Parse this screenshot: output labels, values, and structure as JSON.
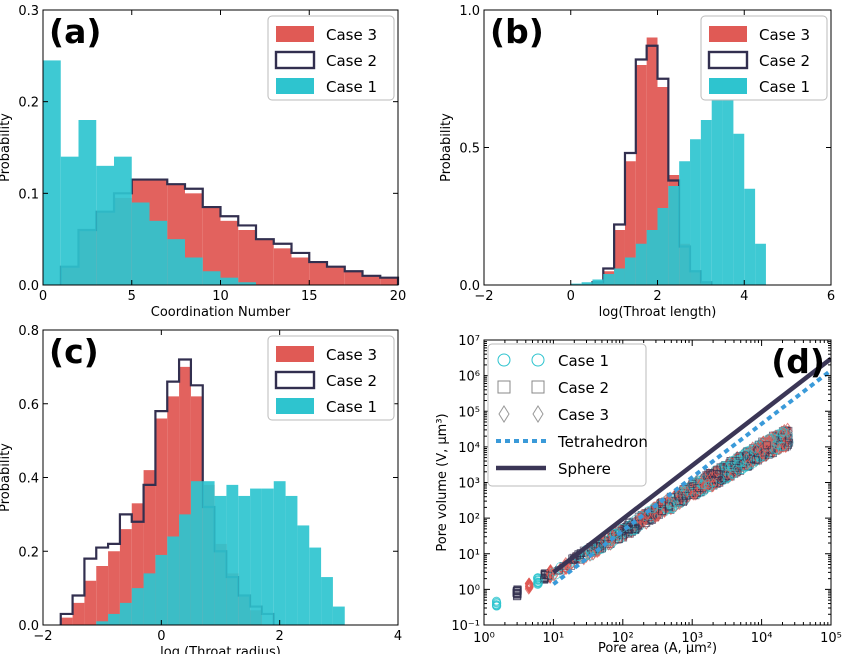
{
  "colors": {
    "case1": "#2ec4cf",
    "case2": "#322f4f",
    "case3": "#e05a55",
    "tetra": "#3a9ad9",
    "sphere": "#3b3656"
  },
  "chart_data": [
    {
      "type": "bar",
      "panel_label": "(a)",
      "xlabel": "Coordination Number",
      "ylabel": "Probability",
      "xlim": [
        0,
        20
      ],
      "ylim": [
        0,
        0.3
      ],
      "xticks": [
        "0",
        "5",
        "10",
        "15",
        "20"
      ],
      "yticks": [
        "0.0",
        "0.1",
        "0.2",
        "0.3"
      ],
      "legend_position": "top-right",
      "legend": [
        "Case 3",
        "Case 2",
        "Case 1"
      ],
      "series": [
        {
          "name": "Case 3",
          "style": "filled",
          "edges": [
            1,
            2,
            3,
            4,
            5,
            6,
            7,
            8,
            9,
            10,
            11,
            12,
            13,
            14,
            15,
            16,
            17,
            18,
            19,
            20
          ],
          "values": [
            0.02,
            0.06,
            0.08,
            0.095,
            0.115,
            0.115,
            0.11,
            0.1,
            0.085,
            0.07,
            0.06,
            0.05,
            0.04,
            0.03,
            0.025,
            0.02,
            0.015,
            0.01,
            0.008
          ]
        },
        {
          "name": "Case 2",
          "style": "step",
          "edges": [
            1,
            2,
            3,
            4,
            5,
            6,
            7,
            8,
            9,
            10,
            11,
            12,
            13,
            14,
            15,
            16,
            17,
            18,
            19,
            20
          ],
          "values": [
            0.02,
            0.06,
            0.08,
            0.1,
            0.115,
            0.115,
            0.11,
            0.105,
            0.085,
            0.075,
            0.065,
            0.05,
            0.045,
            0.035,
            0.025,
            0.02,
            0.015,
            0.01,
            0.008
          ]
        },
        {
          "name": "Case 1",
          "style": "filled",
          "edges": [
            0,
            1,
            2,
            3,
            4,
            5,
            6,
            7,
            8,
            9,
            10,
            11,
            12
          ],
          "values": [
            0.245,
            0.14,
            0.18,
            0.13,
            0.14,
            0.09,
            0.07,
            0.05,
            0.03,
            0.015,
            0.008,
            0.003
          ]
        }
      ]
    },
    {
      "type": "bar",
      "panel_label": "(b)",
      "xlabel": "log(Throat length)",
      "ylabel": "Probability",
      "xlim": [
        -2,
        6
      ],
      "ylim": [
        0,
        1.0
      ],
      "xticks": [
        "−2",
        "0",
        "2",
        "4",
        "6"
      ],
      "yticks": [
        "0.0",
        "0.5",
        "1.0"
      ],
      "legend_position": "top-right",
      "legend": [
        "Case 3",
        "Case 2",
        "Case 1"
      ],
      "series": [
        {
          "name": "Case 3",
          "style": "filled",
          "edges": [
            0.5,
            0.75,
            1.0,
            1.25,
            1.5,
            1.75,
            2.0,
            2.25,
            2.5,
            2.75,
            3.0,
            3.25
          ],
          "values": [
            0.01,
            0.05,
            0.2,
            0.45,
            0.8,
            0.9,
            0.72,
            0.4,
            0.15,
            0.05,
            0.01
          ]
        },
        {
          "name": "Case 2",
          "style": "step",
          "edges": [
            0.5,
            0.75,
            1.0,
            1.25,
            1.5,
            1.75,
            2.0,
            2.25,
            2.5,
            2.75,
            3.0,
            3.25
          ],
          "values": [
            0.01,
            0.06,
            0.22,
            0.48,
            0.82,
            0.87,
            0.75,
            0.38,
            0.14,
            0.05,
            0.01
          ]
        },
        {
          "name": "Case 1",
          "style": "filled",
          "edges": [
            0.0,
            0.25,
            0.5,
            0.75,
            1.0,
            1.25,
            1.5,
            1.75,
            2.0,
            2.25,
            2.5,
            2.75,
            3.0,
            3.25,
            3.5,
            3.75,
            4.0,
            4.25,
            4.5
          ],
          "values": [
            0.005,
            0.01,
            0.02,
            0.04,
            0.06,
            0.1,
            0.15,
            0.2,
            0.28,
            0.36,
            0.45,
            0.53,
            0.6,
            0.68,
            0.72,
            0.55,
            0.35,
            0.15
          ]
        }
      ]
    },
    {
      "type": "bar",
      "panel_label": "(c)",
      "xlabel": "log (Throat radius)",
      "ylabel": "Probability",
      "xlim": [
        -2,
        4
      ],
      "ylim": [
        0,
        0.8
      ],
      "xticks": [
        "−2",
        "0",
        "2",
        "4"
      ],
      "yticks": [
        "0.0",
        "0.2",
        "0.4",
        "0.6",
        "0.8"
      ],
      "legend_position": "top-right",
      "legend": [
        "Case 3",
        "Case 2",
        "Case 1"
      ],
      "series": [
        {
          "name": "Case 3",
          "style": "filled",
          "edges": [
            -1.7,
            -1.5,
            -1.3,
            -1.1,
            -0.9,
            -0.7,
            -0.5,
            -0.3,
            -0.1,
            0.1,
            0.3,
            0.5,
            0.7,
            0.9,
            1.1,
            1.3,
            1.5,
            1.7
          ],
          "values": [
            0.02,
            0.06,
            0.12,
            0.16,
            0.2,
            0.26,
            0.33,
            0.42,
            0.56,
            0.62,
            0.7,
            0.62,
            0.38,
            0.22,
            0.14,
            0.08,
            0.04
          ]
        },
        {
          "name": "Case 2",
          "style": "step",
          "edges": [
            -1.7,
            -1.5,
            -1.3,
            -1.1,
            -0.9,
            -0.7,
            -0.5,
            -0.3,
            -0.1,
            0.1,
            0.3,
            0.5,
            0.7,
            0.9,
            1.1,
            1.3,
            1.5,
            1.7,
            1.9
          ],
          "values": [
            0.03,
            0.08,
            0.18,
            0.21,
            0.22,
            0.3,
            0.28,
            0.38,
            0.58,
            0.66,
            0.72,
            0.65,
            0.32,
            0.2,
            0.13,
            0.08,
            0.05,
            0.03
          ]
        },
        {
          "name": "Case 1",
          "style": "filled",
          "edges": [
            -1.1,
            -0.9,
            -0.7,
            -0.5,
            -0.3,
            -0.1,
            0.1,
            0.3,
            0.5,
            0.7,
            0.9,
            1.1,
            1.3,
            1.5,
            1.7,
            1.9,
            2.1,
            2.3,
            2.5,
            2.7,
            2.9,
            3.1
          ],
          "values": [
            0.01,
            0.03,
            0.06,
            0.1,
            0.14,
            0.19,
            0.24,
            0.3,
            0.39,
            0.39,
            0.35,
            0.38,
            0.35,
            0.37,
            0.37,
            0.39,
            0.35,
            0.27,
            0.21,
            0.13,
            0.05
          ]
        }
      ]
    },
    {
      "type": "scatter",
      "panel_label": "(d)",
      "xlabel": "Pore area (A, μm²)",
      "ylabel": "Pore volume (V, μm³)",
      "xscale": "log",
      "yscale": "log",
      "xlim": [
        1,
        100000
      ],
      "ylim": [
        0.1,
        10000000
      ],
      "xticks": [
        "10⁰",
        "10¹",
        "10²",
        "10³",
        "10⁴",
        "10⁵"
      ],
      "yticks": [
        "10⁻¹",
        "10⁰",
        "10¹",
        "10²",
        "10³",
        "10⁴",
        "10⁵",
        "10⁶",
        "10⁷"
      ],
      "legend_position": "top-left",
      "legend": [
        "Case 1",
        "Case 2",
        "Case 3",
        "Tetrahedron",
        "Sphere"
      ],
      "lines": [
        {
          "name": "Tetrahedron",
          "style": "dotted",
          "x": [
            10,
            100000
          ],
          "y": [
            1.4,
            1400000
          ]
        },
        {
          "name": "Sphere",
          "style": "solid",
          "x": [
            10,
            100000
          ],
          "y": [
            3.0,
            3000000
          ]
        }
      ],
      "scatter_trend": {
        "x": [
          1.5,
          3,
          6,
          10,
          30,
          100,
          300,
          1000,
          3000,
          10000,
          25000
        ],
        "y": [
          0.4,
          0.8,
          1.7,
          3,
          10,
          40,
          150,
          600,
          2000,
          8000,
          20000
        ]
      }
    }
  ]
}
